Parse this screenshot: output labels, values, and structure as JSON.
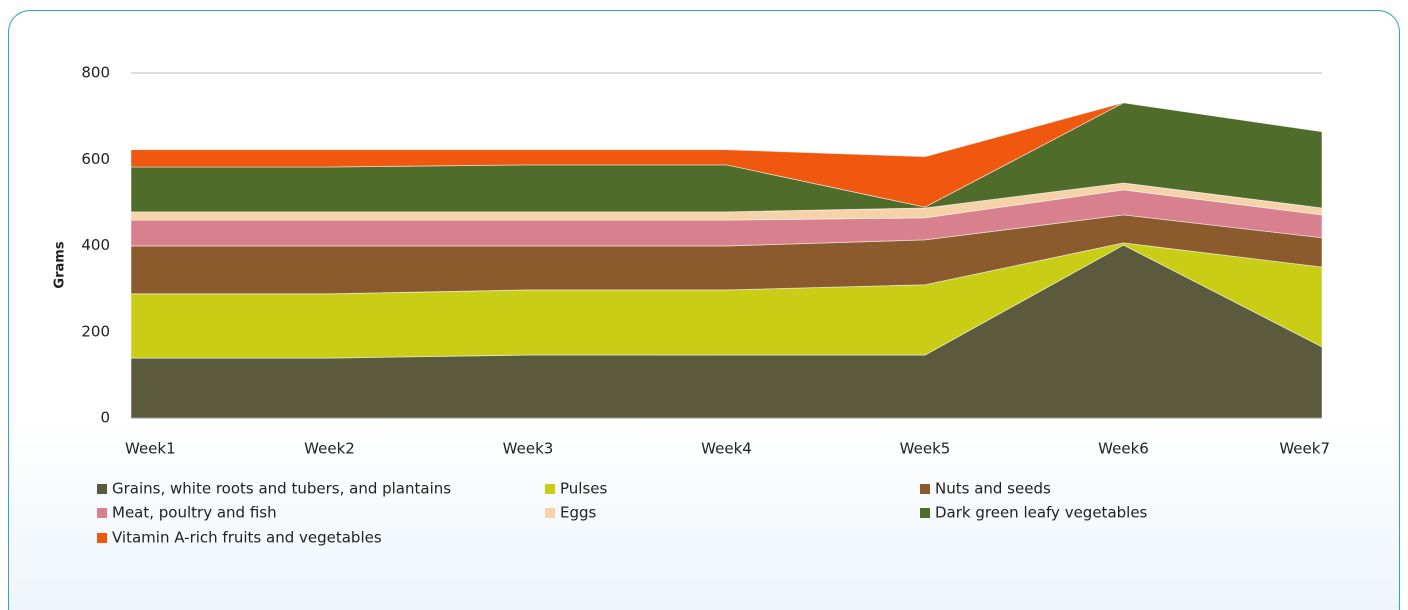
{
  "chart_data": {
    "type": "stacked_area",
    "ylabel": "Grams",
    "categories": [
      "Week1",
      "Week2",
      "Week3",
      "Week4",
      "Week5",
      "Week6",
      "Week7"
    ],
    "ylim": [
      0,
      800
    ],
    "yticks": [
      0,
      200,
      400,
      600,
      800
    ],
    "series": [
      {
        "name": "Grains, white roots and tubers, and plantains",
        "color": "#5b5a3c",
        "values": [
          139,
          139,
          146,
          146,
          146,
          401,
          165
        ]
      },
      {
        "name": "Pulses",
        "color": "#c9cd16",
        "values": [
          149,
          149,
          151,
          151,
          163,
          5,
          185
        ]
      },
      {
        "name": "Nuts and seeds",
        "color": "#8b5b2e",
        "values": [
          111,
          111,
          102,
          102,
          104,
          65,
          68
        ]
      },
      {
        "name": "Meat, poultry and fish",
        "color": "#d9808f",
        "values": [
          60,
          60,
          60,
          60,
          51,
          58,
          53
        ]
      },
      {
        "name": "Eggs",
        "color": "#f6d2a8",
        "values": [
          19,
          19,
          19,
          19,
          23,
          16,
          16
        ]
      },
      {
        "name": "Dark green leafy vegetables",
        "color": "#4f6c2a",
        "values": [
          104,
          104,
          109,
          109,
          2,
          186,
          177
        ]
      },
      {
        "name": "Vitamin A-rich fruits and vegetables",
        "color": "#f0580f",
        "values": [
          40,
          40,
          35,
          35,
          117,
          0,
          0
        ]
      }
    ]
  }
}
